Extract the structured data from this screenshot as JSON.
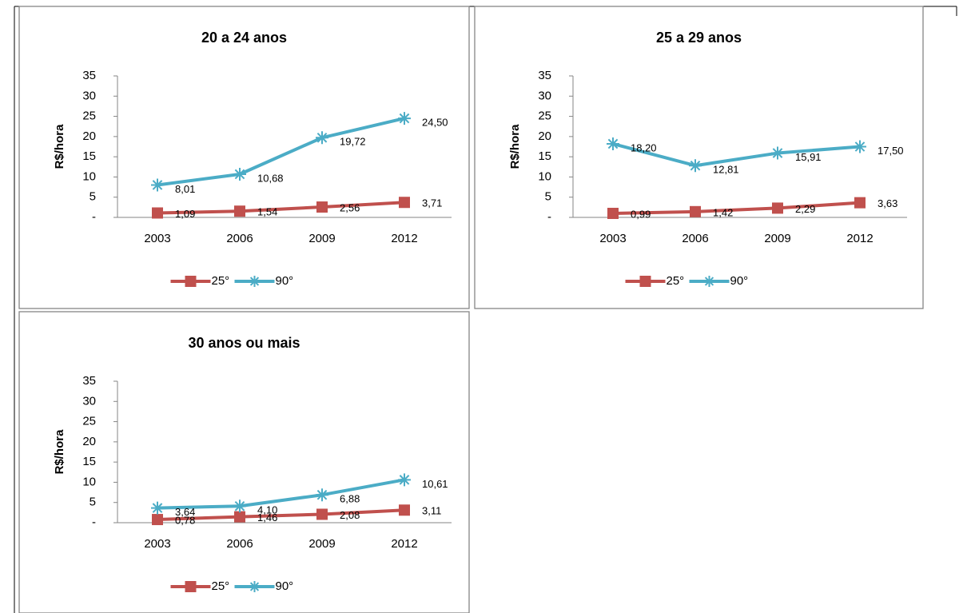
{
  "chart_data": [
    {
      "type": "line",
      "title": "20 a 24 anos",
      "y_label": "R$/hora",
      "categories": [
        "2003",
        "2006",
        "2009",
        "2012"
      ],
      "ylim": [
        0,
        35
      ],
      "yticks": [
        {
          "value": 0,
          "label": "-"
        },
        5,
        10,
        15,
        20,
        25,
        30,
        35
      ],
      "legend": "bottom",
      "series": [
        {
          "name": "25°",
          "color": "#c0504d",
          "marker": "square",
          "values": [
            1.09,
            1.54,
            2.56,
            3.71
          ],
          "value_labels": [
            "1,09",
            "1,54",
            "2,56",
            "3,71"
          ]
        },
        {
          "name": "90°",
          "color": "#4bacc6",
          "marker": "star",
          "values": [
            8.01,
            10.68,
            19.72,
            24.5
          ],
          "value_labels": [
            "8,01",
            "10,68",
            "19,72",
            "24,50"
          ]
        }
      ]
    },
    {
      "type": "line",
      "title": "25 a 29 anos",
      "y_label": "R$/hora",
      "categories": [
        "2003",
        "2006",
        "2009",
        "2012"
      ],
      "ylim": [
        0,
        35
      ],
      "yticks": [
        {
          "value": 0,
          "label": "-"
        },
        5,
        10,
        15,
        20,
        25,
        30,
        35
      ],
      "legend": "bottom",
      "series": [
        {
          "name": "25°",
          "color": "#c0504d",
          "marker": "square",
          "values": [
            0.99,
            1.42,
            2.29,
            3.63
          ],
          "value_labels": [
            "0,99",
            "1,42",
            "2,29",
            "3,63"
          ]
        },
        {
          "name": "90°",
          "color": "#4bacc6",
          "marker": "star",
          "values": [
            18.2,
            12.81,
            15.91,
            17.5
          ],
          "value_labels": [
            "18,20",
            "12,81",
            "15,91",
            "17,50"
          ]
        }
      ]
    },
    {
      "type": "line",
      "title": "30 anos ou mais",
      "y_label": "R$/hora",
      "categories": [
        "2003",
        "2006",
        "2009",
        "2012"
      ],
      "ylim": [
        0,
        35
      ],
      "yticks": [
        {
          "value": 0,
          "label": "-"
        },
        5,
        10,
        15,
        20,
        25,
        30,
        35
      ],
      "legend": "bottom",
      "series": [
        {
          "name": "25°",
          "color": "#c0504d",
          "marker": "square",
          "values": [
            0.78,
            1.46,
            2.08,
            3.11
          ],
          "value_labels": [
            "0,78",
            "1,46",
            "2,08",
            "3,11"
          ]
        },
        {
          "name": "90°",
          "color": "#4bacc6",
          "marker": "star",
          "values": [
            3.64,
            4.1,
            6.88,
            10.61
          ],
          "value_labels": [
            "3,64",
            "4,10",
            "6,88",
            "10,61"
          ]
        }
      ]
    }
  ]
}
